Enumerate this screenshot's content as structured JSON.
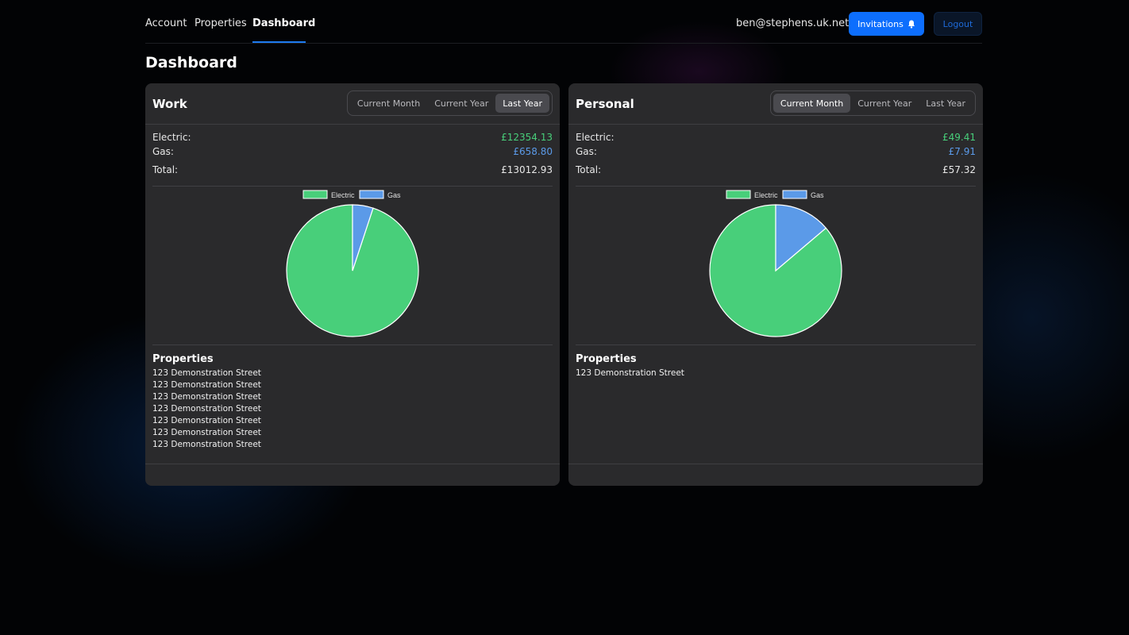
{
  "nav": {
    "links": [
      {
        "label": "Account"
      },
      {
        "label": "Properties"
      },
      {
        "label": "Dashboard"
      }
    ],
    "user_email": "ben@stephens.uk.net",
    "invitations_label": "Invitations",
    "logout_label": "Logout"
  },
  "page": {
    "title": "Dashboard"
  },
  "colors": {
    "electric": "#48cf7a",
    "gas": "#5b9ae8",
    "primary": "#0d6efd"
  },
  "cards": [
    {
      "title": "Work",
      "periods": [
        "Current Month",
        "Current Year",
        "Last Year"
      ],
      "active_period": "Last Year",
      "electric_label": "Electric:",
      "electric_value": "£12354.13",
      "gas_label": "Gas:",
      "gas_value": "£658.80",
      "total_label": "Total:",
      "total_value": "£13012.93",
      "properties_title": "Properties",
      "properties": [
        "123 Demonstration Street",
        "123 Demonstration Street",
        "123 Demonstration Street",
        "123 Demonstration Street",
        "123 Demonstration Street",
        "123 Demonstration Street",
        "123 Demonstration Street"
      ]
    },
    {
      "title": "Personal",
      "periods": [
        "Current Month",
        "Current Year",
        "Last Year"
      ],
      "active_period": "Current Month",
      "electric_label": "Electric:",
      "electric_value": "£49.41",
      "gas_label": "Gas:",
      "gas_value": "£7.91",
      "total_label": "Total:",
      "total_value": "£57.32",
      "properties_title": "Properties",
      "properties": [
        "123 Demonstration Street"
      ]
    }
  ],
  "chart_data": [
    {
      "type": "pie",
      "categories": [
        "Electric",
        "Gas"
      ],
      "values": [
        12354.13,
        658.8
      ],
      "legend": "top"
    },
    {
      "type": "pie",
      "categories": [
        "Electric",
        "Gas"
      ],
      "values": [
        49.41,
        7.91
      ],
      "legend": "top"
    }
  ]
}
